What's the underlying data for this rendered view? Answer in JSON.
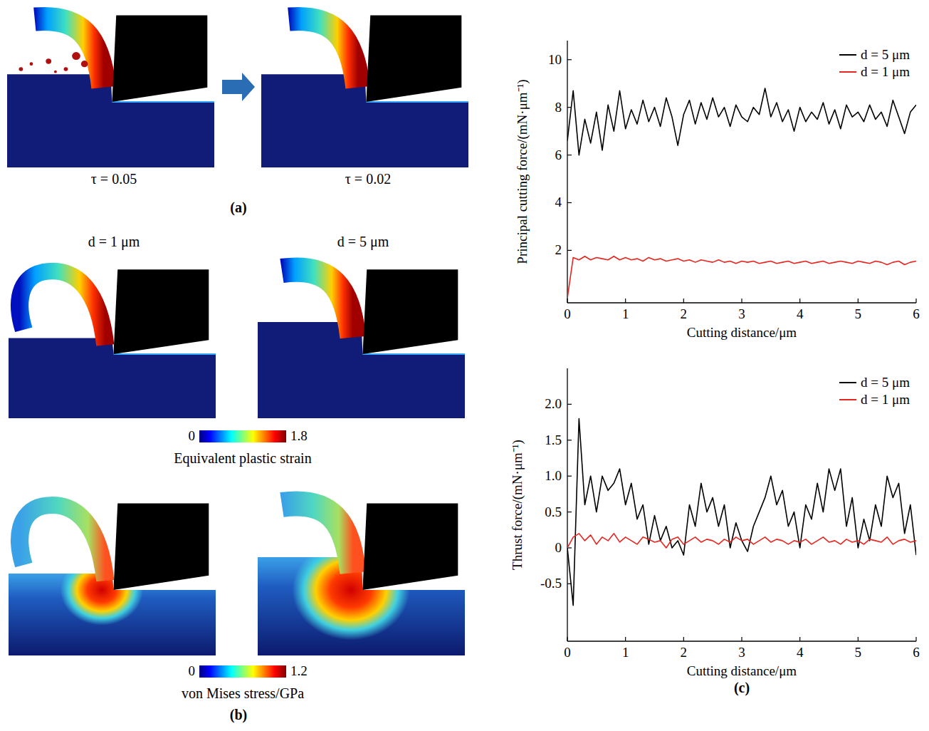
{
  "panel_a": {
    "label": "(a)",
    "images": [
      {
        "caption": "τ = 0.05"
      },
      {
        "caption": "τ = 0.02"
      }
    ]
  },
  "panel_b": {
    "label": "(b)",
    "columns": [
      "d = 1 μm",
      "d = 5 μm"
    ],
    "colorbars": [
      {
        "title": "Equivalent plastic strain",
        "range": [
          0,
          1.8
        ],
        "ticks": [
          0,
          1.8
        ]
      },
      {
        "title": "von Mises stress/GPa",
        "range": [
          0,
          1.2
        ],
        "ticks": [
          0,
          1.2
        ]
      }
    ]
  },
  "panel_c": {
    "label": "(c)"
  },
  "chart_data": [
    {
      "type": "line",
      "xlabel": "Cutting distance/μm",
      "ylabel": "Principal cutting force/(mN·μm⁻¹)",
      "x": [
        0,
        0.1,
        0.2,
        0.3,
        0.4,
        0.5,
        0.6,
        0.7,
        0.8,
        0.9,
        1,
        1.1,
        1.2,
        1.3,
        1.4,
        1.5,
        1.6,
        1.7,
        1.8,
        1.9,
        2,
        2.1,
        2.2,
        2.3,
        2.4,
        2.5,
        2.6,
        2.7,
        2.8,
        2.9,
        3,
        3.1,
        3.2,
        3.3,
        3.4,
        3.5,
        3.6,
        3.7,
        3.8,
        3.9,
        4,
        4.1,
        4.2,
        4.3,
        4.4,
        4.5,
        4.6,
        4.7,
        4.8,
        4.9,
        5,
        5.1,
        5.2,
        5.3,
        5.4,
        5.5,
        5.6,
        5.7,
        5.8,
        5.9,
        6
      ],
      "xlim": [
        0,
        6
      ],
      "xticks": [
        0,
        1,
        2,
        3,
        4,
        5,
        6
      ],
      "ylim": [
        -0.2,
        10.8
      ],
      "yticks": [
        2,
        4,
        6,
        8,
        10
      ],
      "legend": "upper right",
      "series": [
        {
          "name": "d = 5 μm",
          "color": "#000000",
          "values": [
            6.6,
            8.7,
            6.0,
            7.5,
            6.5,
            7.8,
            6.2,
            8.1,
            7.0,
            8.7,
            7.1,
            7.9,
            7.3,
            8.3,
            7.4,
            8.0,
            7.2,
            8.4,
            7.6,
            6.4,
            7.7,
            8.3,
            7.3,
            8.2,
            7.5,
            8.4,
            7.6,
            8.0,
            7.2,
            8.1,
            7.6,
            7.4,
            8.0,
            7.7,
            8.8,
            7.6,
            8.2,
            7.4,
            7.9,
            7.0,
            8.0,
            7.4,
            7.8,
            7.5,
            8.2,
            7.3,
            7.9,
            7.1,
            8.1,
            7.6,
            7.8,
            7.4,
            8.1,
            7.5,
            7.8,
            7.2,
            8.3,
            7.6,
            6.9,
            7.8,
            8.1
          ]
        },
        {
          "name": "d = 1 μm",
          "color": "#e8251f",
          "values": [
            0,
            1.7,
            1.6,
            1.75,
            1.6,
            1.7,
            1.65,
            1.6,
            1.75,
            1.6,
            1.7,
            1.6,
            1.65,
            1.55,
            1.7,
            1.6,
            1.65,
            1.55,
            1.6,
            1.65,
            1.55,
            1.6,
            1.5,
            1.6,
            1.55,
            1.5,
            1.6,
            1.5,
            1.55,
            1.45,
            1.55,
            1.5,
            1.55,
            1.45,
            1.5,
            1.55,
            1.45,
            1.5,
            1.55,
            1.45,
            1.5,
            1.55,
            1.45,
            1.5,
            1.55,
            1.45,
            1.5,
            1.55,
            1.5,
            1.45,
            1.55,
            1.5,
            1.45,
            1.55,
            1.5,
            1.4,
            1.5,
            1.55,
            1.4,
            1.5,
            1.55
          ]
        }
      ]
    },
    {
      "type": "line",
      "xlabel": "Cutting distance/μm",
      "ylabel": "Thrust force/(mN·μm⁻¹)",
      "x": [
        0,
        0.1,
        0.2,
        0.3,
        0.4,
        0.5,
        0.6,
        0.7,
        0.8,
        0.9,
        1,
        1.1,
        1.2,
        1.3,
        1.4,
        1.5,
        1.6,
        1.7,
        1.8,
        1.9,
        2,
        2.1,
        2.2,
        2.3,
        2.4,
        2.5,
        2.6,
        2.7,
        2.8,
        2.9,
        3,
        3.1,
        3.2,
        3.3,
        3.4,
        3.5,
        3.6,
        3.7,
        3.8,
        3.9,
        4,
        4.1,
        4.2,
        4.3,
        4.4,
        4.5,
        4.6,
        4.7,
        4.8,
        4.9,
        5,
        5.1,
        5.2,
        5.3,
        5.4,
        5.5,
        5.6,
        5.7,
        5.8,
        5.9,
        6
      ],
      "xlim": [
        0,
        6
      ],
      "xticks": [
        0,
        1,
        2,
        3,
        4,
        5,
        6
      ],
      "ylim": [
        -1.3,
        2.5
      ],
      "yticks": [
        -0.5,
        0,
        0.5,
        {
          "value": 1,
          "label": "1.0"
        },
        1.5,
        {
          "value": 2,
          "label": "2.0"
        }
      ],
      "legend": "upper right",
      "series": [
        {
          "name": "d = 5 μm",
          "color": "#000000",
          "values": [
            0,
            -0.8,
            1.8,
            0.6,
            1.0,
            0.5,
            1.0,
            0.8,
            0.9,
            1.1,
            0.6,
            0.9,
            0.4,
            0.6,
            0.05,
            0.45,
            0.1,
            0.3,
            0.0,
            0.1,
            -0.1,
            0.6,
            0.3,
            0.9,
            0.5,
            0.7,
            0.3,
            0.6,
            0.0,
            0.35,
            0.1,
            -0.05,
            0.3,
            0.5,
            0.7,
            1.0,
            0.6,
            0.8,
            0.3,
            0.5,
            0.0,
            0.6,
            0.4,
            0.9,
            0.5,
            1.1,
            0.8,
            1.1,
            0.3,
            0.7,
            0.0,
            0.4,
            0.1,
            0.6,
            0.3,
            1.0,
            0.7,
            0.9,
            0.2,
            0.6,
            -0.1
          ]
        },
        {
          "name": "d = 1 μm",
          "color": "#e8251f",
          "values": [
            0,
            0.15,
            0.2,
            0.1,
            0.18,
            0.05,
            0.15,
            0.1,
            0.2,
            0.08,
            0.15,
            0.1,
            0.05,
            0.15,
            0.12,
            0.08,
            0.1,
            0.0,
            0.12,
            0.15,
            0.05,
            0.1,
            0.15,
            0.08,
            0.12,
            0.1,
            0.05,
            0.12,
            0.08,
            0.15,
            0.1,
            0.12,
            0.05,
            0.1,
            0.15,
            0.08,
            0.12,
            0.1,
            0.05,
            0.1,
            0.08,
            0.12,
            0.05,
            0.1,
            0.15,
            0.08,
            0.1,
            0.05,
            0.12,
            0.08,
            0.1,
            0.05,
            0.12,
            0.1,
            0.08,
            0.15,
            0.05,
            0.1,
            0.12,
            0.08,
            0.1
          ]
        }
      ]
    }
  ]
}
